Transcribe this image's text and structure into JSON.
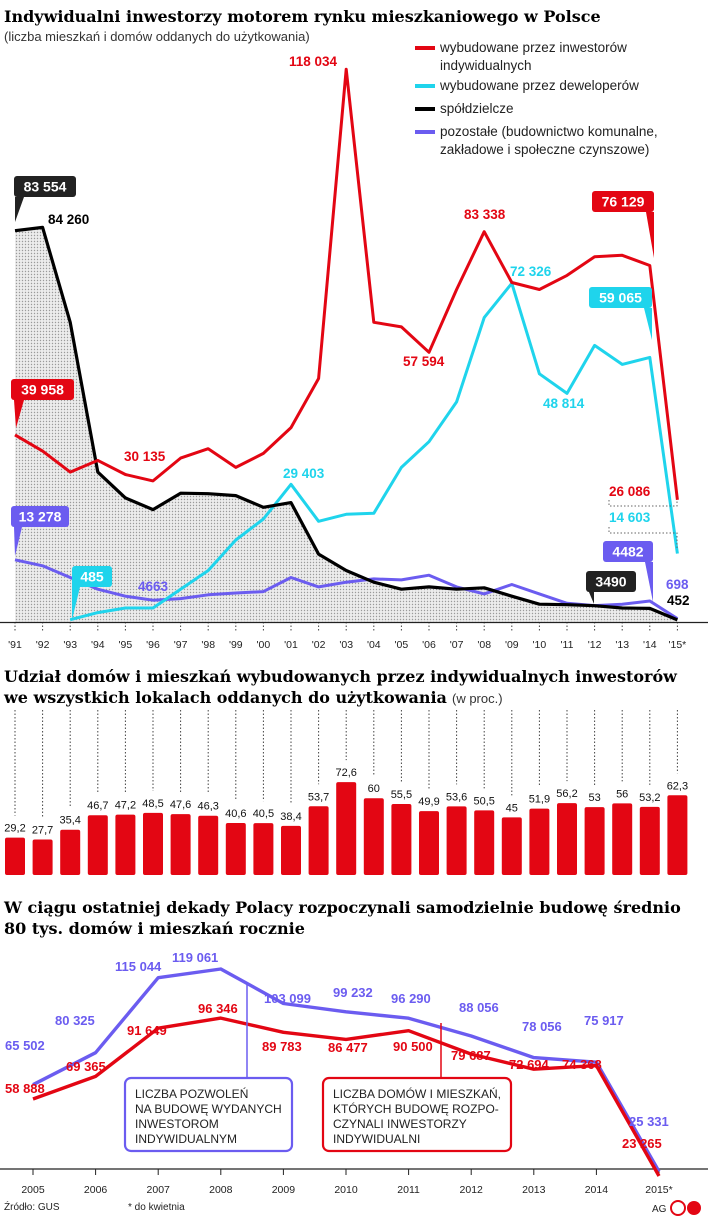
{
  "chart_data": [
    {
      "type": "line",
      "title": "Indywidualni inwestorzy motorem rynku mieszkaniowego w Polsce",
      "subtitle": "(liczba mieszkań i domów oddanych do użytkowania)",
      "x": [
        "'91",
        "'92",
        "'93",
        "'94",
        "'95",
        "'96",
        "'97",
        "'98",
        "'99",
        "'00",
        "'01",
        "'02",
        "'03",
        "'04",
        "'05",
        "'06",
        "'07",
        "'08",
        "'09",
        "'10",
        "'11",
        "'12",
        "'13",
        "'14",
        "'15*"
      ],
      "ylim": [
        0,
        120000
      ],
      "series": [
        {
          "name": "wybudowane przez inwestorów indywidualnych",
          "color": "#e30613",
          "values": [
            39958,
            36500,
            32000,
            34500,
            31500,
            30135,
            35000,
            37000,
            33000,
            36000,
            41500,
            52000,
            118034,
            64000,
            63000,
            57594,
            71000,
            83338,
            72500,
            71000,
            74000,
            78000,
            78300,
            76129,
            26086
          ]
        },
        {
          "name": "wybudowane przez deweloperów",
          "color": "#1fd4ec",
          "values": [
            null,
            null,
            485,
            2000,
            3000,
            3000,
            7000,
            11000,
            17500,
            22000,
            29403,
            21500,
            23000,
            23200,
            33000,
            38500,
            47000,
            65000,
            72326,
            53000,
            48814,
            59065,
            55000,
            56500,
            14603
          ]
        },
        {
          "name": "spółdzielcze",
          "color": "#000000",
          "values": [
            83554,
            84260,
            64000,
            32000,
            26500,
            24000,
            27500,
            27400,
            27000,
            24500,
            25500,
            14500,
            11000,
            8500,
            7000,
            7500,
            7000,
            7300,
            5500,
            3800,
            3700,
            3490,
            3000,
            2900,
            452
          ]
        },
        {
          "name": "pozostałe (budownictwo komunalne, zakładowe i społeczne czynszowe)",
          "color": "#6b5cf0",
          "values": [
            13278,
            12000,
            9500,
            7000,
            5500,
            4663,
            5000,
            5800,
            6200,
            6500,
            9500,
            7500,
            8500,
            9200,
            9000,
            10000,
            7500,
            6000,
            8000,
            6000,
            4000,
            3500,
            3800,
            4482,
            698
          ]
        }
      ],
      "labels": {
        "red": [
          "39 958",
          "30 135",
          "118 034",
          "57 594",
          "83 338",
          "76 129",
          "26 086"
        ],
        "cyan": [
          "485",
          "29 403",
          "72 326",
          "48 814",
          "59 065",
          "14 603"
        ],
        "black": [
          "83 554",
          "84 260",
          "3490",
          "452"
        ],
        "purple": [
          "13 278",
          "4663",
          "4482",
          "698"
        ]
      }
    },
    {
      "type": "bar",
      "title": "Udział domów i mieszkań wybudowanych przez indywidualnych inwestorów",
      "title2": "we wszystkich lokalach oddanych do użytkowania",
      "unit_note": "(w proc.)",
      "color": "#e30613",
      "categories": [
        "'91",
        "'92",
        "'93",
        "'94",
        "'95",
        "'96",
        "'97",
        "'98",
        "'99",
        "'00",
        "'01",
        "'02",
        "'03",
        "'04",
        "'05",
        "'06",
        "'07",
        "'08",
        "'09",
        "'10",
        "'11",
        "'12",
        "'13",
        "'14",
        "'15*"
      ],
      "values": [
        29.2,
        27.7,
        35.4,
        46.7,
        47.2,
        48.5,
        47.6,
        46.3,
        40.6,
        40.5,
        38.4,
        53.7,
        72.6,
        60,
        55.5,
        49.9,
        53.6,
        50.5,
        45,
        51.9,
        56.2,
        53,
        56,
        53.2,
        62.3
      ],
      "value_labels": [
        "29,2",
        "27,7",
        "35,4",
        "46,7",
        "47,2",
        "48,5",
        "47,6",
        "46,3",
        "40,6",
        "40,5",
        "38,4",
        "53,7",
        "72,6",
        "60",
        "55,5",
        "49,9",
        "53,6",
        "50,5",
        "45",
        "51,9",
        "56,2",
        "53",
        "56",
        "53,2",
        "62,3"
      ]
    },
    {
      "type": "line",
      "title": "W ciągu ostatniej dekady Polacy rozpoczynali samodzielnie budowę średnio",
      "title2": "80 tys. domów i mieszkań rocznie",
      "x": [
        "2005",
        "2006",
        "2007",
        "2008",
        "2009",
        "2010",
        "2011",
        "2012",
        "2013",
        "2014",
        "2015*"
      ],
      "series": [
        {
          "name": "LICZBA POZWOLEŃ NA BUDOWĘ WYDANYCH INWESTOROM INDYWIDUALNYM",
          "color": "#6b5cf0",
          "values": [
            65502,
            80325,
            115044,
            119061,
            103099,
            99232,
            96290,
            88056,
            78056,
            75917,
            25331
          ],
          "value_labels": [
            "65 502",
            "80 325",
            "115 044",
            "119 061",
            "103 099",
            "99 232",
            "96 290",
            "88 056",
            "78 056",
            "75 917",
            "25 331"
          ]
        },
        {
          "name": "LICZBA DOMÓW I MIESZKAŃ, KTÓRYCH BUDOWĘ ROZPOCZYNALI INWESTORZY INDYWIDUALNI",
          "color": "#e30613",
          "values": [
            58888,
            69365,
            91649,
            96346,
            89783,
            86477,
            90500,
            79687,
            72694,
            74368,
            23265
          ],
          "value_labels": [
            "58 888",
            "69 365",
            "91 649",
            "96 346",
            "89 783",
            "86 477",
            "90 500",
            "79 687",
            "72 694",
            "74 368",
            "23 265"
          ]
        }
      ],
      "box_labels": {
        "purple": [
          "LICZBA POZWOLEŃ",
          "NA BUDOWĘ WYDANYCH",
          "INWESTOROM",
          "INDYWIDUALNYM"
        ],
        "red": [
          "LICZBA DOMÓW I MIESZKAŃ,",
          "KTÓRYCH BUDOWĘ ROZPO-",
          "CZYNALI INWESTORZY",
          "INDYWIDUALNI"
        ]
      }
    }
  ],
  "footer": {
    "source": "Źródło: GUS",
    "note": "* do kwietnia",
    "credit": "AG"
  }
}
